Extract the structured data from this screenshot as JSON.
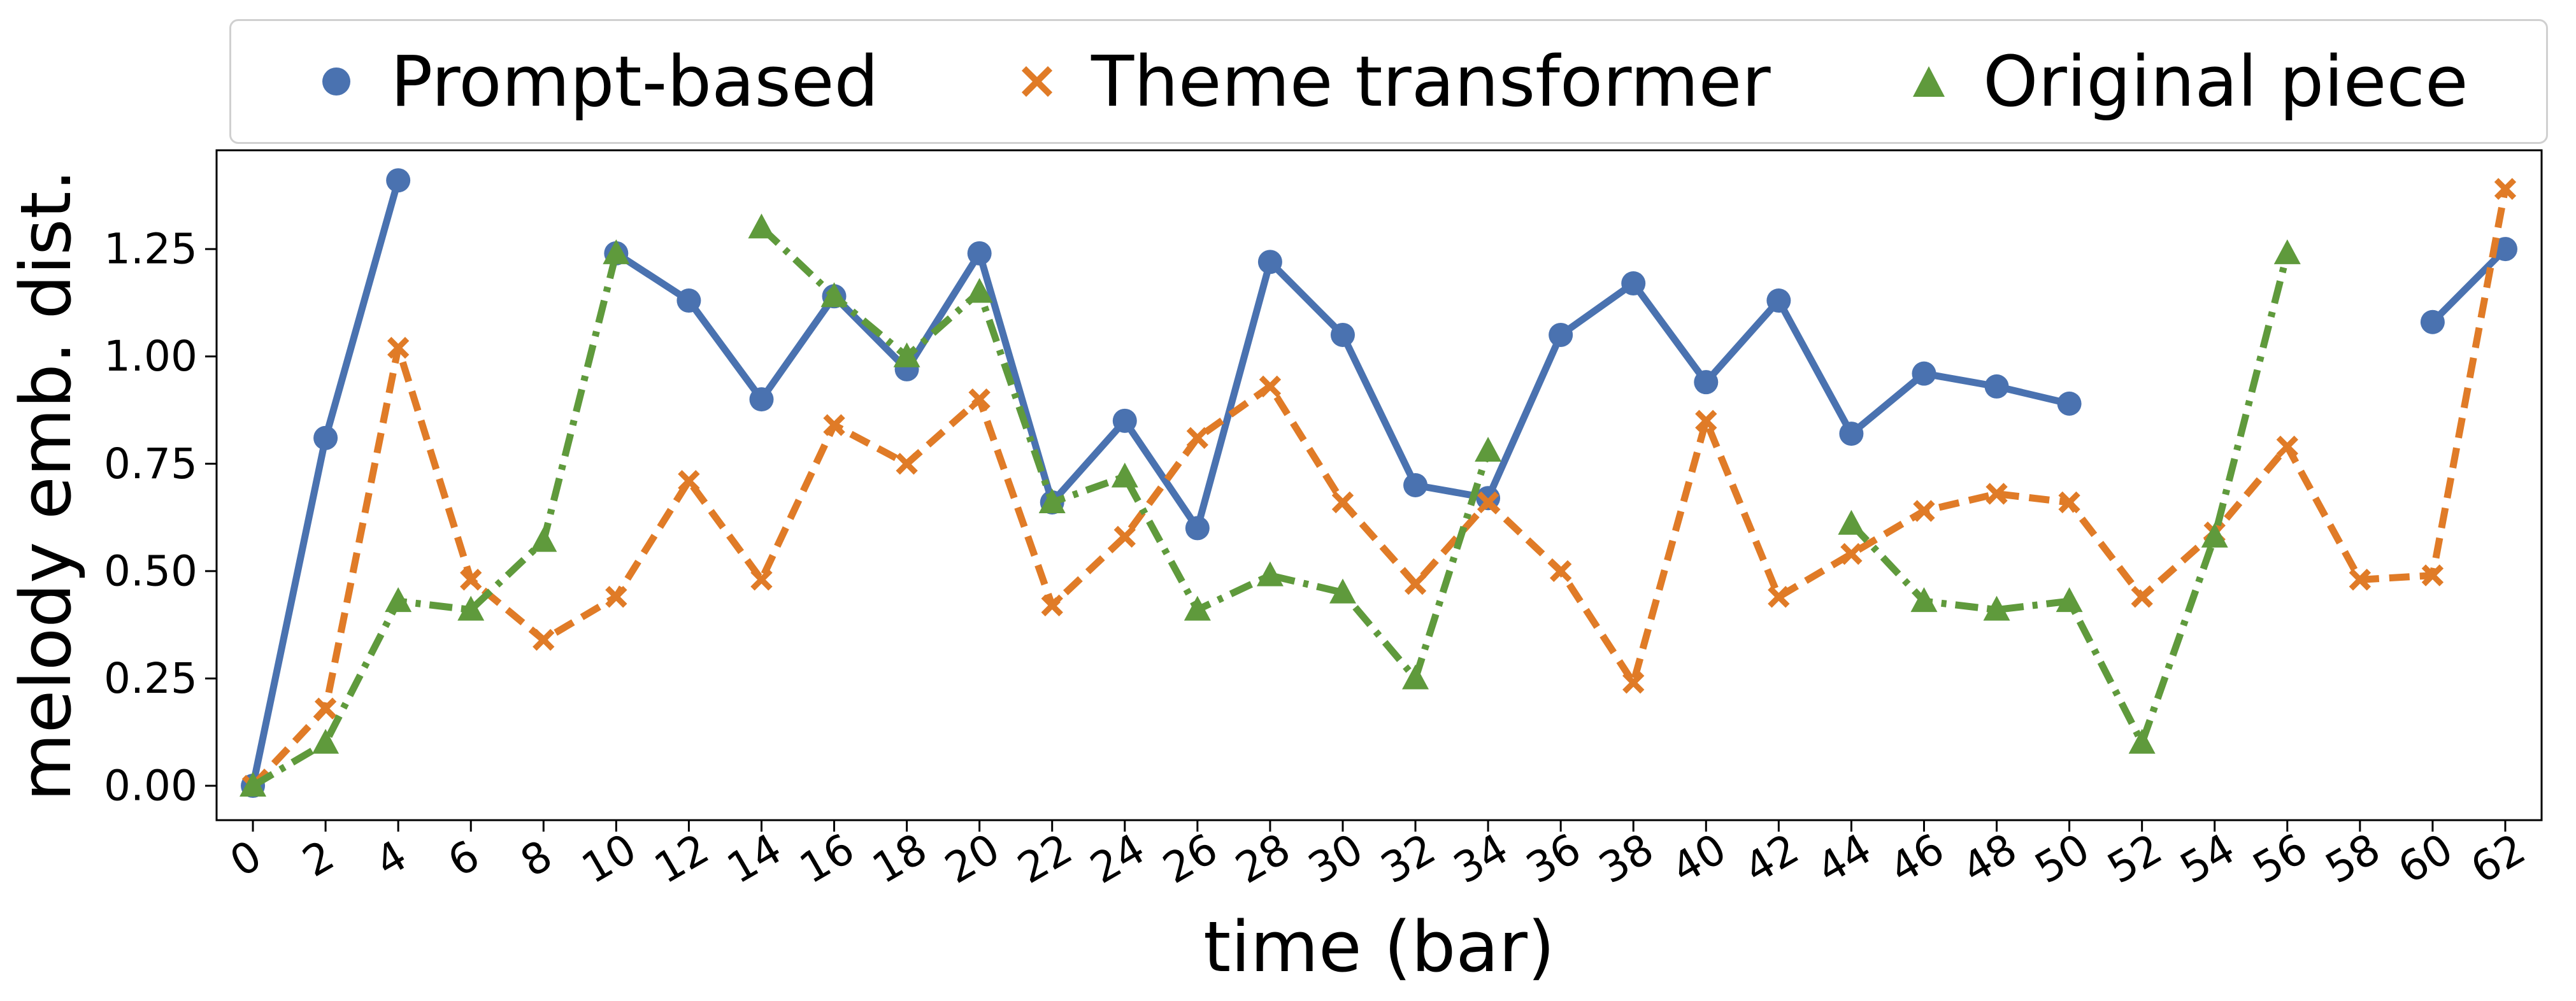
{
  "chart_data": {
    "type": "line",
    "xlabel": "time (bar)",
    "ylabel": "melody emb. dist.",
    "xlim": [
      -1,
      63
    ],
    "ylim": [
      -0.08,
      1.48
    ],
    "x_ticks": [
      0,
      2,
      4,
      6,
      8,
      10,
      12,
      14,
      16,
      18,
      20,
      22,
      24,
      26,
      28,
      30,
      32,
      34,
      36,
      38,
      40,
      42,
      44,
      46,
      48,
      50,
      52,
      54,
      56,
      58,
      60,
      62
    ],
    "y_ticks": [
      0.0,
      0.25,
      0.5,
      0.75,
      1.0,
      1.25
    ],
    "y_tick_labels": [
      "0.00",
      "0.25",
      "0.50",
      "0.75",
      "1.00",
      "1.25"
    ],
    "grid": false,
    "legend_placement": "top, outside plot",
    "series": [
      {
        "name": "Prompt-based",
        "color": "#4a72b0",
        "marker": "circle",
        "linestyle": "solid",
        "segments": [
          [
            [
              0,
              0.0
            ],
            [
              2,
              0.81
            ],
            [
              4,
              1.41
            ]
          ],
          [
            [
              10,
              1.24
            ],
            [
              12,
              1.13
            ],
            [
              14,
              0.9
            ],
            [
              16,
              1.14
            ],
            [
              18,
              0.97
            ],
            [
              20,
              1.24
            ],
            [
              22,
              0.66
            ],
            [
              24,
              0.85
            ],
            [
              26,
              0.6
            ],
            [
              28,
              1.22
            ],
            [
              30,
              1.05
            ],
            [
              32,
              0.7
            ],
            [
              34,
              0.67
            ],
            [
              36,
              1.05
            ],
            [
              38,
              1.17
            ],
            [
              40,
              0.94
            ],
            [
              42,
              1.13
            ],
            [
              44,
              0.82
            ],
            [
              46,
              0.96
            ],
            [
              48,
              0.93
            ],
            [
              50,
              0.89
            ]
          ],
          [
            [
              60,
              1.08
            ],
            [
              62,
              1.25
            ]
          ]
        ]
      },
      {
        "name": "Theme transformer",
        "color": "#e07b27",
        "marker": "x",
        "linestyle": "dashed",
        "segments": [
          [
            [
              0,
              0.0
            ],
            [
              2,
              0.18
            ],
            [
              4,
              1.02
            ],
            [
              6,
              0.48
            ],
            [
              8,
              0.34
            ],
            [
              10,
              0.44
            ],
            [
              12,
              0.71
            ],
            [
              14,
              0.48
            ],
            [
              16,
              0.84
            ],
            [
              18,
              0.75
            ],
            [
              20,
              0.9
            ],
            [
              22,
              0.42
            ],
            [
              24,
              0.58
            ],
            [
              26,
              0.81
            ],
            [
              28,
              0.93
            ],
            [
              30,
              0.66
            ],
            [
              32,
              0.47
            ],
            [
              34,
              0.66
            ],
            [
              36,
              0.5
            ],
            [
              38,
              0.24
            ],
            [
              40,
              0.85
            ],
            [
              42,
              0.44
            ],
            [
              44,
              0.54
            ],
            [
              46,
              0.64
            ],
            [
              48,
              0.68
            ],
            [
              50,
              0.66
            ],
            [
              52,
              0.44
            ],
            [
              54,
              0.59
            ],
            [
              56,
              0.79
            ],
            [
              58,
              0.48
            ],
            [
              60,
              0.49
            ],
            [
              62,
              1.39
            ]
          ]
        ]
      },
      {
        "name": "Original piece",
        "color": "#5f9a3c",
        "marker": "triangle",
        "linestyle": "dashdot",
        "segments": [
          [
            [
              0,
              0.0
            ],
            [
              2,
              0.1
            ],
            [
              4,
              0.43
            ],
            [
              6,
              0.41
            ],
            [
              8,
              0.57
            ],
            [
              10,
              1.24
            ]
          ],
          [
            [
              14,
              1.3
            ],
            [
              16,
              1.14
            ],
            [
              18,
              1.0
            ],
            [
              20,
              1.15
            ],
            [
              22,
              0.66
            ],
            [
              24,
              0.72
            ],
            [
              26,
              0.41
            ],
            [
              28,
              0.49
            ],
            [
              30,
              0.45
            ],
            [
              32,
              0.25
            ],
            [
              34,
              0.78
            ]
          ],
          [
            [
              44,
              0.61
            ],
            [
              46,
              0.43
            ],
            [
              48,
              0.41
            ],
            [
              50,
              0.43
            ],
            [
              52,
              0.1
            ],
            [
              54,
              0.58
            ],
            [
              56,
              1.24
            ]
          ]
        ]
      }
    ]
  }
}
